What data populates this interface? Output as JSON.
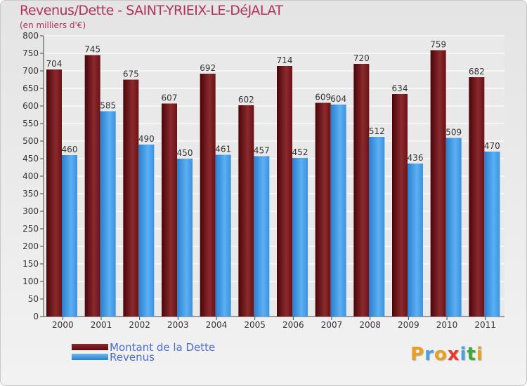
{
  "chart_data": {
    "type": "bar",
    "title": "Revenus/Dette - SAINT-YRIEIX-LE-DéJALAT",
    "subtitle": "(en milliers d'€)",
    "categories": [
      "2000",
      "2001",
      "2002",
      "2003",
      "2004",
      "2005",
      "2006",
      "2007",
      "2008",
      "2009",
      "2010",
      "2011"
    ],
    "series": [
      {
        "name": "Montant de la Dette",
        "color": "#7a1418",
        "values": [
          704,
          745,
          675,
          607,
          692,
          602,
          714,
          609,
          720,
          634,
          759,
          682
        ]
      },
      {
        "name": "Revenus",
        "color": "#3d9be9",
        "values": [
          460,
          585,
          490,
          450,
          461,
          457,
          452,
          604,
          512,
          436,
          509,
          470
        ]
      }
    ],
    "ylim": [
      0,
      800
    ],
    "ytick_step": 50,
    "grid": true,
    "legend_position": "bottom-left"
  },
  "logo": {
    "text": "Proxiti",
    "colors": [
      "#e8a020",
      "#4aa0e0",
      "#e8a020",
      "#e83a2a",
      "#4aa0e0",
      "#3aa83a",
      "#e8a020"
    ]
  }
}
